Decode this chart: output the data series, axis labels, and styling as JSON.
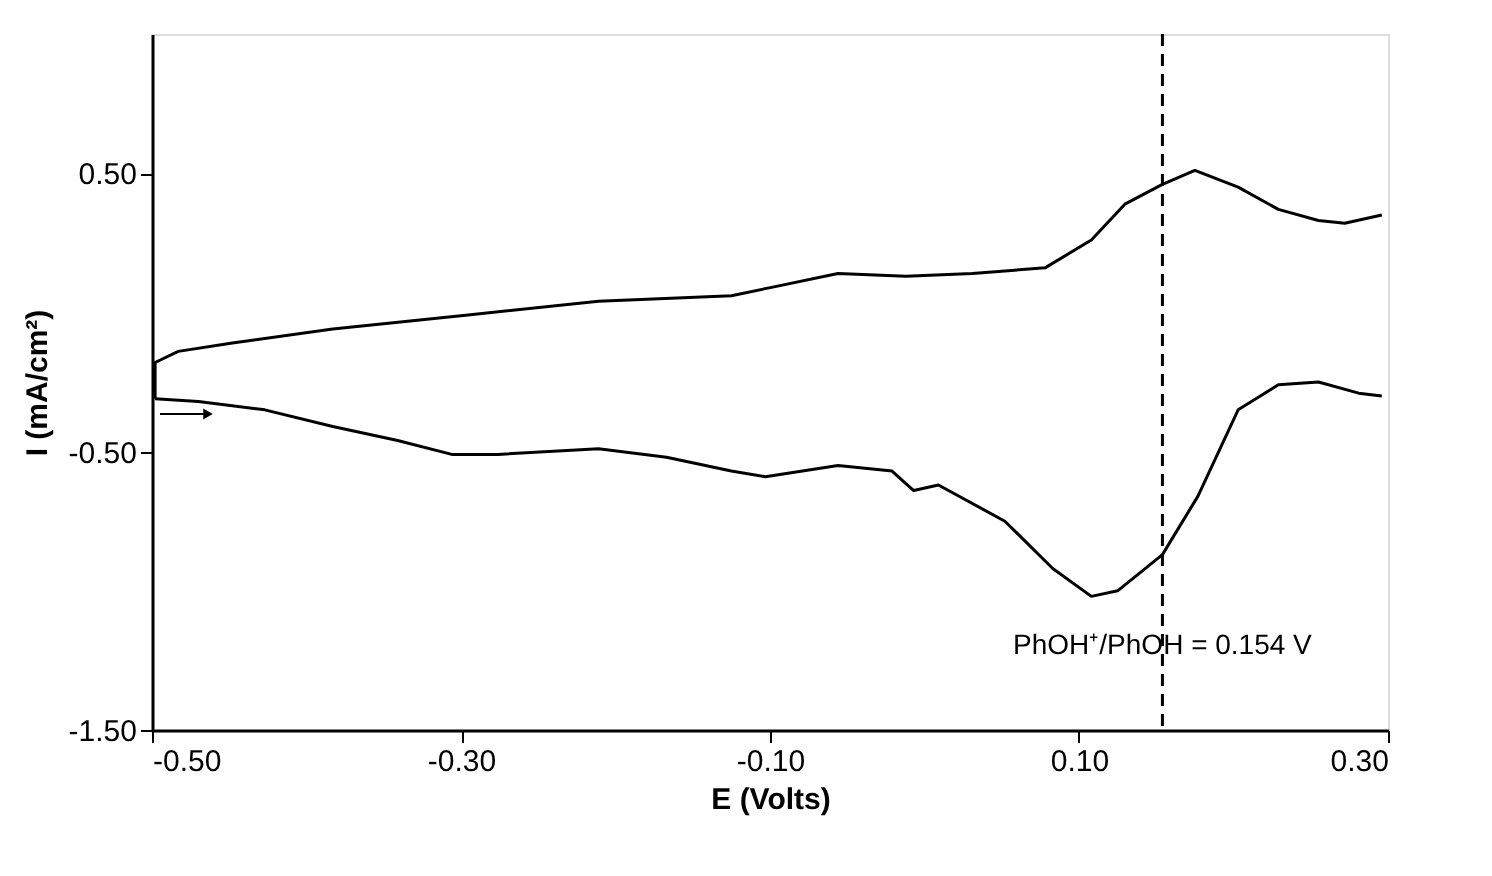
{
  "chart_data": {
    "type": "line",
    "xlabel": "E (Volts)",
    "ylabel": "I (mA/cm²)",
    "xlim": [
      -0.5,
      0.3
    ],
    "ylim": [
      -1.5,
      1.0
    ],
    "xticks": [
      {
        "value": -0.5,
        "label": "-0.50"
      },
      {
        "value": -0.3,
        "label": "-0.30"
      },
      {
        "value": -0.1,
        "label": "-0.10"
      },
      {
        "value": 0.1,
        "label": "0.10"
      },
      {
        "value": 0.3,
        "label": "0.30"
      }
    ],
    "yticks": [
      {
        "value": -1.5,
        "label": "-1.50"
      },
      {
        "value": -0.5,
        "label": "-0.50"
      },
      {
        "value": 0.5,
        "label": "0.50"
      }
    ],
    "grid": false,
    "marker": "none",
    "line_style": "solid",
    "series": [
      {
        "color": "#000000",
        "x": [
          -0.498,
          -0.47,
          -0.427,
          -0.383,
          -0.341,
          -0.306,
          -0.276,
          -0.211,
          -0.167,
          -0.125,
          -0.103,
          -0.056,
          -0.021,
          -0.007,
          0.009,
          0.052,
          0.083,
          0.108,
          0.125,
          0.154,
          0.177,
          0.203,
          0.229,
          0.255,
          0.281,
          0.296
        ],
        "values": [
          -0.31,
          -0.32,
          -0.35,
          -0.41,
          -0.46,
          -0.51,
          -0.51,
          -0.49,
          -0.52,
          -0.57,
          -0.59,
          -0.55,
          -0.57,
          -0.64,
          -0.62,
          -0.75,
          -0.92,
          -1.02,
          -1.0,
          -0.87,
          -0.66,
          -0.35,
          -0.26,
          -0.25,
          -0.29,
          -0.3
        ]
      },
      {
        "color": "#000000",
        "x": [
          -0.498,
          -0.498,
          -0.483,
          -0.448,
          -0.383,
          -0.297,
          -0.211,
          -0.125,
          -0.099,
          -0.056,
          -0.012,
          0.031,
          0.078,
          0.108,
          0.13,
          0.154,
          0.175,
          0.203,
          0.229,
          0.255,
          0.272,
          0.296
        ],
        "values": [
          -0.31,
          -0.18,
          -0.14,
          -0.11,
          -0.06,
          -0.01,
          0.04,
          0.06,
          0.09,
          0.14,
          0.13,
          0.14,
          0.16,
          0.26,
          0.39,
          0.46,
          0.51,
          0.45,
          0.37,
          0.33,
          0.32,
          0.35
        ]
      }
    ],
    "ref_lines": [
      {
        "axis": "x",
        "value": 0.154,
        "label": "PhOH⁺/PhOH = 0.154 V",
        "color": "#000000",
        "line_style": "dashed"
      }
    ]
  }
}
